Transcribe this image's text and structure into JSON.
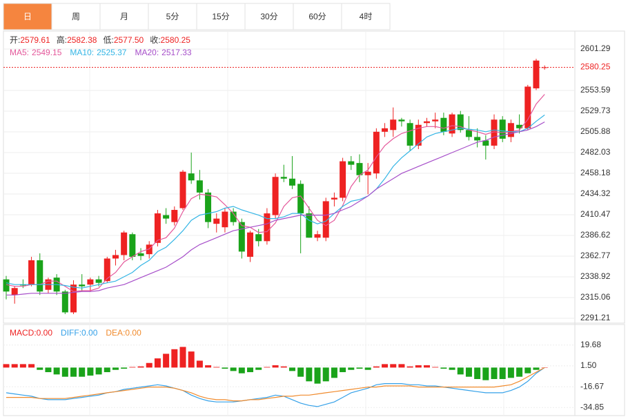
{
  "tabs": [
    "日",
    "周",
    "月",
    "5分",
    "15分",
    "30分",
    "60分",
    "4时"
  ],
  "active_tab": 0,
  "chart_data": [
    {
      "type": "candlestick",
      "header": [
        {
          "label": "开:",
          "value": "2579.61"
        },
        {
          "label": "高:",
          "value": "2582.38"
        },
        {
          "label": "低:",
          "value": "2577.50"
        },
        {
          "label": "收:",
          "value": "2580.25"
        }
      ],
      "up_color": "#ee2222",
      "down_color": "#1aa31a",
      "open": [
        2336,
        2318,
        2330,
        2330,
        2358,
        2324,
        2338,
        2322,
        2298,
        2330,
        2330,
        2336,
        2334,
        2360,
        2364,
        2388,
        2366,
        2365,
        2378,
        2410,
        2402,
        2418,
        2458,
        2450,
        2436,
        2400,
        2396,
        2414,
        2402,
        2362,
        2388,
        2380,
        2410,
        2454,
        2452,
        2446,
        2412,
        2384,
        2384,
        2428,
        2430,
        2472,
        2470,
        2456,
        2458,
        2506,
        2508,
        2520,
        2516,
        2490,
        2516,
        2518,
        2522,
        2504,
        2526,
        2508,
        2500,
        2496,
        2490,
        2520,
        2500,
        2514,
        2510,
        2556,
        2579.61
      ],
      "high": [
        2340,
        2328,
        2336,
        2362,
        2366,
        2338,
        2342,
        2324,
        2335,
        2342,
        2338,
        2340,
        2362,
        2370,
        2392,
        2390,
        2372,
        2380,
        2416,
        2418,
        2420,
        2462,
        2482,
        2462,
        2440,
        2412,
        2418,
        2418,
        2406,
        2392,
        2394,
        2418,
        2458,
        2468,
        2478,
        2450,
        2420,
        2392,
        2430,
        2436,
        2476,
        2478,
        2480,
        2470,
        2510,
        2516,
        2534,
        2522,
        2520,
        2520,
        2522,
        2528,
        2528,
        2528,
        2530,
        2524,
        2510,
        2502,
        2526,
        2524,
        2520,
        2526,
        2560,
        2590,
        2582.38
      ],
      "low": [
        2313,
        2308,
        2326,
        2328,
        2318,
        2320,
        2318,
        2296,
        2296,
        2322,
        2322,
        2328,
        2332,
        2352,
        2358,
        2358,
        2358,
        2360,
        2374,
        2400,
        2398,
        2416,
        2446,
        2428,
        2395,
        2390,
        2390,
        2398,
        2360,
        2356,
        2374,
        2376,
        2406,
        2448,
        2440,
        2366,
        2384,
        2380,
        2380,
        2420,
        2426,
        2462,
        2448,
        2434,
        2452,
        2500,
        2500,
        2512,
        2484,
        2486,
        2512,
        2510,
        2502,
        2500,
        2505,
        2496,
        2488,
        2474,
        2486,
        2494,
        2494,
        2504,
        2508,
        2554,
        2577.5
      ],
      "close": [
        2322,
        2326,
        2329,
        2358,
        2322,
        2336,
        2322,
        2298,
        2330,
        2328,
        2336,
        2332,
        2360,
        2364,
        2390,
        2362,
        2363,
        2376,
        2412,
        2406,
        2416,
        2460,
        2450,
        2436,
        2402,
        2406,
        2414,
        2402,
        2368,
        2390,
        2380,
        2412,
        2454,
        2452,
        2444,
        2412,
        2384,
        2388,
        2426,
        2430,
        2472,
        2468,
        2456,
        2460,
        2506,
        2510,
        2520,
        2518,
        2490,
        2514,
        2518,
        2520,
        2506,
        2526,
        2508,
        2500,
        2496,
        2490,
        2520,
        2498,
        2516,
        2510,
        2558,
        2588,
        2580.25
      ],
      "series": [
        {
          "label": "MA5:",
          "current": "2549.15",
          "color": "#e4579a",
          "values": [
            2330,
            2328,
            2328,
            2330,
            2330,
            2334,
            2334,
            2328,
            2322,
            2323,
            2323,
            2326,
            2337,
            2344,
            2356,
            2362,
            2368,
            2371,
            2381,
            2384,
            2395,
            2414,
            2429,
            2434,
            2433,
            2431,
            2422,
            2412,
            2398,
            2396,
            2390,
            2391,
            2401,
            2420,
            2430,
            2432,
            2418,
            2404,
            2398,
            2404,
            2421,
            2443,
            2456,
            2462,
            2477,
            2490,
            2498,
            2504,
            2507,
            2510,
            2512,
            2512,
            2510,
            2513,
            2512,
            2508,
            2506,
            2503,
            2506,
            2505,
            2506,
            2508,
            2520,
            2538,
            2549.15
          ]
        },
        {
          "label": "MA10:",
          "current": "2525.37",
          "color": "#33b5e5",
          "values": [
            2332,
            2330,
            2330,
            2330,
            2330,
            2330,
            2330,
            2329,
            2327,
            2326,
            2328,
            2330,
            2332,
            2334,
            2339,
            2344,
            2352,
            2358,
            2368,
            2373,
            2382,
            2392,
            2404,
            2410,
            2412,
            2414,
            2418,
            2420,
            2416,
            2413,
            2410,
            2406,
            2406,
            2408,
            2412,
            2412,
            2404,
            2400,
            2403,
            2412,
            2420,
            2426,
            2428,
            2432,
            2440,
            2452,
            2466,
            2476,
            2484,
            2492,
            2500,
            2504,
            2506,
            2508,
            2510,
            2509,
            2508,
            2506,
            2508,
            2507,
            2506,
            2506,
            2510,
            2518,
            2525.37
          ]
        },
        {
          "label": "MA20:",
          "current": "2517.33",
          "color": "#a64ec9",
          "values": [
            2318,
            2318,
            2319,
            2320,
            2320,
            2320,
            2320,
            2320,
            2321,
            2322,
            2322,
            2323,
            2326,
            2328,
            2330,
            2334,
            2338,
            2342,
            2346,
            2350,
            2356,
            2362,
            2370,
            2376,
            2380,
            2384,
            2388,
            2392,
            2394,
            2396,
            2398,
            2400,
            2404,
            2406,
            2408,
            2410,
            2410,
            2410,
            2410,
            2412,
            2416,
            2420,
            2426,
            2432,
            2440,
            2446,
            2452,
            2458,
            2462,
            2466,
            2470,
            2474,
            2478,
            2482,
            2486,
            2490,
            2494,
            2496,
            2500,
            2502,
            2504,
            2506,
            2508,
            2512,
            2517.33
          ]
        }
      ],
      "last_price": 2580.25,
      "ylim": [
        2285.63,
        2621.96
      ],
      "yticks": [
        2601.29,
        2553.59,
        2529.73,
        2505.88,
        2482.03,
        2458.18,
        2434.32,
        2410.47,
        2386.62,
        2362.77,
        2338.92,
        2315.06,
        2291.21
      ]
    },
    {
      "type": "macd",
      "header": [
        {
          "text": "MACD:0.00",
          "color": "#ee2222"
        },
        {
          "text": "DIFF:0.00",
          "color": "#33a0e8"
        },
        {
          "text": "DEA:0.00",
          "color": "#f08a2c"
        }
      ],
      "up_color": "#ee2222",
      "down_color": "#1aa31a",
      "histogram": [
        3,
        3,
        3,
        3,
        -2,
        -4,
        -6,
        -8,
        -8,
        -8,
        -7,
        -6,
        -4,
        -2,
        -1,
        0.5,
        1,
        4,
        8,
        12,
        16,
        18,
        14,
        6,
        2,
        0.5,
        -1,
        -3,
        -5,
        -4,
        -2,
        0.5,
        2,
        1,
        -3,
        -8,
        -12,
        -14,
        -12,
        -9,
        -4,
        -2,
        -1,
        -2,
        1,
        3,
        3,
        3,
        1,
        2,
        2,
        0.5,
        -1,
        -2,
        -6,
        -8,
        -10,
        -11,
        -10,
        -10,
        -9,
        -8,
        -5,
        -2,
        0
      ],
      "series": [
        {
          "color": "#33a0e8",
          "values": [
            -22,
            -23,
            -24,
            -25,
            -27,
            -28,
            -28,
            -28,
            -27,
            -26,
            -25,
            -24,
            -22,
            -21,
            -19,
            -18,
            -17,
            -16,
            -15,
            -16,
            -18,
            -20,
            -24,
            -27,
            -29,
            -30,
            -30,
            -30,
            -29,
            -28,
            -27,
            -26,
            -24,
            -25,
            -28,
            -31,
            -33,
            -34,
            -32,
            -30,
            -26,
            -22,
            -20,
            -18,
            -15,
            -14,
            -14,
            -14,
            -15,
            -15,
            -16,
            -16,
            -17,
            -18,
            -19,
            -20,
            -21,
            -22,
            -22,
            -22,
            -20,
            -17,
            -12,
            -5,
            0
          ]
        },
        {
          "color": "#f08a2c",
          "values": [
            -26,
            -26,
            -26,
            -26,
            -27,
            -27,
            -27,
            -27,
            -26,
            -25,
            -24,
            -23,
            -22,
            -21,
            -20,
            -19,
            -18,
            -17,
            -17,
            -17,
            -18,
            -20,
            -22,
            -25,
            -27,
            -28,
            -28,
            -29,
            -29,
            -28,
            -28,
            -27,
            -26,
            -25,
            -25,
            -24,
            -24,
            -23,
            -22,
            -21,
            -20,
            -19,
            -18,
            -17,
            -17,
            -16,
            -16,
            -16,
            -16,
            -17,
            -17,
            -17,
            -17,
            -17,
            -17,
            -17,
            -17,
            -17,
            -17,
            -16,
            -15,
            -12,
            -8,
            -4,
            0
          ]
        }
      ],
      "ylim": [
        -41.9,
        37.55
      ],
      "yticks": [
        19.68,
        {
          "value": 1.5,
          "label": "1.50"
        },
        -16.67,
        -34.85
      ]
    }
  ]
}
